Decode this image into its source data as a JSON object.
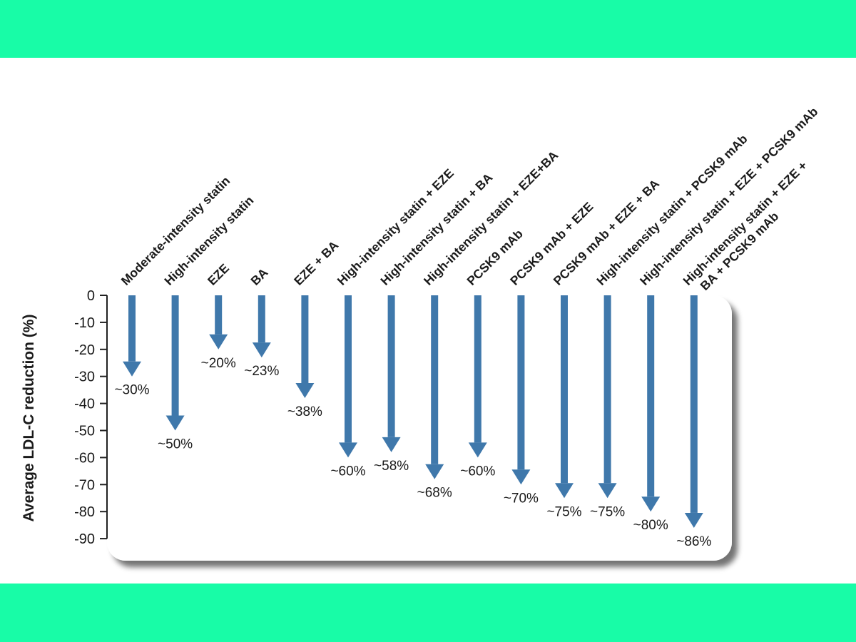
{
  "colors": {
    "band": "#18fca7",
    "arrow": "#3f78ab",
    "panel_shadow": "#8f8f8f",
    "text": "#1a1a1a"
  },
  "chart_data": {
    "type": "bar",
    "orientation": "vertical-arrows-downward",
    "title": "",
    "xlabel": "",
    "ylabel": "Average LDL-C reduction (%)",
    "ylim": [
      -90,
      0
    ],
    "yticks": [
      0,
      -10,
      -20,
      -30,
      -40,
      -50,
      -60,
      -70,
      -80,
      -90
    ],
    "grid": false,
    "legend": "none",
    "categories": [
      [
        "Moderate-intensity statin"
      ],
      [
        "High-intensity statin"
      ],
      [
        "EZE"
      ],
      [
        "BA"
      ],
      [
        "EZE + BA"
      ],
      [
        "High-intensity statin + EZE"
      ],
      [
        "High-intensity statin + BA"
      ],
      [
        "High-intensity statin + EZE+BA"
      ],
      [
        "PCSK9 mAb"
      ],
      [
        "PCSK9 mAb + EZE"
      ],
      [
        "PCSK9 mAb + EZE + BA"
      ],
      [
        "High-intensity statin + PCSK9 mAb"
      ],
      [
        "High-intensity statin + EZE + PCSK9 mAb"
      ],
      [
        "High-intensity statin + EZE +",
        "BA + PCSK9 mAb"
      ]
    ],
    "values": [
      -30,
      -50,
      -20,
      -23,
      -38,
      -60,
      -58,
      -68,
      -60,
      -70,
      -75,
      -75,
      -80,
      -86
    ],
    "data_labels": [
      "~30%",
      "~50%",
      "~20%",
      "~23%",
      "~38%",
      "~60%",
      "~58%",
      "~68%",
      "~60%",
      "~70%",
      "~75%",
      "~75%",
      "~80%",
      "~86%"
    ]
  }
}
